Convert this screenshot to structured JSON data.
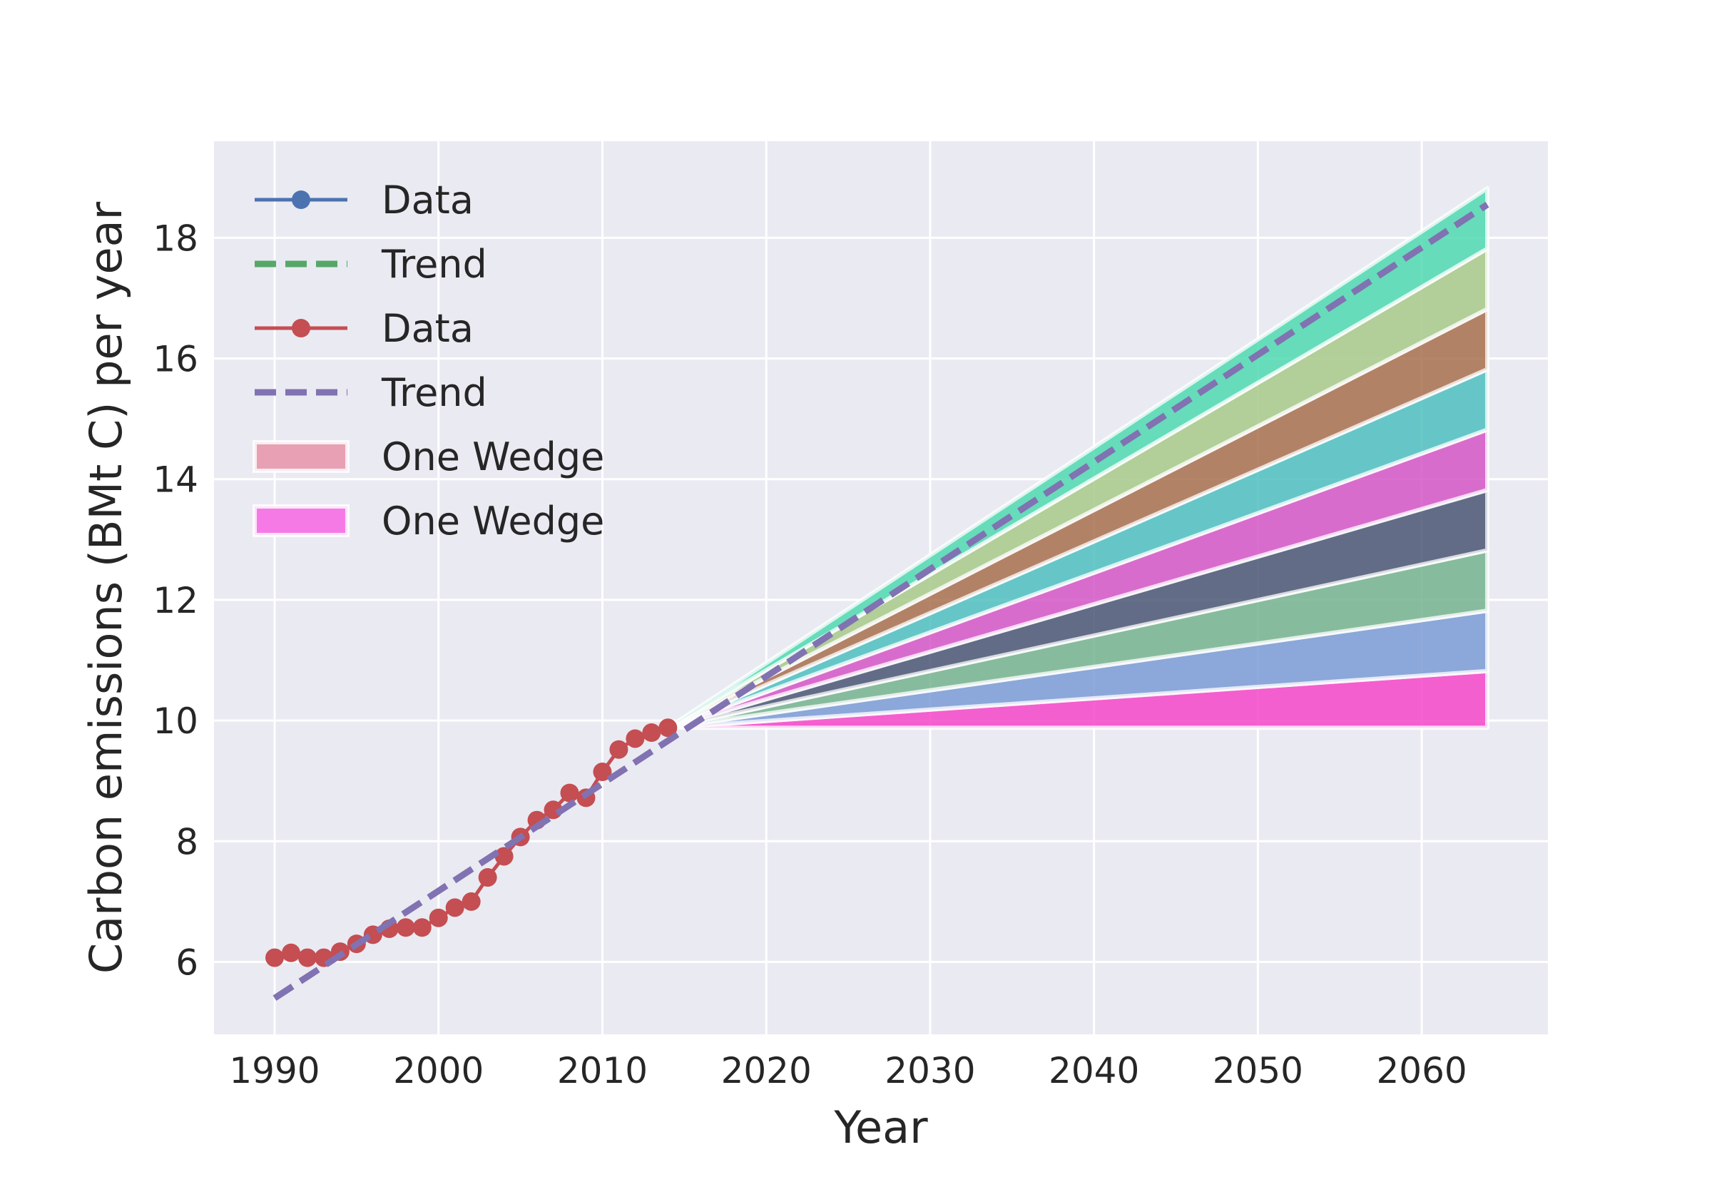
{
  "chart_data": {
    "type": "line",
    "xlabel": "Year",
    "ylabel": "Carbon emissions (BMt C) per year",
    "xlim": [
      1986.3,
      2067.7
    ],
    "ylim": [
      4.8,
      19.6
    ],
    "xticks": [
      1990,
      2000,
      2010,
      2020,
      2030,
      2040,
      2050,
      2060
    ],
    "yticks": [
      6,
      8,
      10,
      12,
      14,
      16,
      18
    ],
    "grid": true,
    "legend_position": "top-left",
    "legend": [
      {
        "label": "Data",
        "kind": "line-marker",
        "color": "#4c72b0"
      },
      {
        "label": "Trend",
        "kind": "dashed",
        "color": "#55a868"
      },
      {
        "label": "Data",
        "kind": "line-marker",
        "color": "#c44e52"
      },
      {
        "label": "Trend",
        "kind": "dashed",
        "color": "#8172b2"
      },
      {
        "label": "One Wedge",
        "kind": "patch",
        "color": "#e8a0b4"
      },
      {
        "label": "One Wedge",
        "kind": "patch",
        "color": "#f57ae6"
      }
    ],
    "data": {
      "color": "#c44e52",
      "x": [
        1990,
        1991,
        1992,
        1993,
        1994,
        1995,
        1996,
        1997,
        1998,
        1999,
        2000,
        2001,
        2002,
        2003,
        2004,
        2005,
        2006,
        2007,
        2008,
        2009,
        2010,
        2011,
        2012,
        2013,
        2014
      ],
      "y": [
        6.07,
        6.15,
        6.07,
        6.07,
        6.17,
        6.3,
        6.45,
        6.55,
        6.57,
        6.57,
        6.73,
        6.9,
        7.0,
        7.4,
        7.75,
        8.07,
        8.35,
        8.52,
        8.8,
        8.72,
        9.15,
        9.52,
        9.7,
        9.8,
        9.88
      ]
    },
    "trend": {
      "color": "#8172b2",
      "x": [
        1990,
        2064
      ],
      "y": [
        5.4,
        18.55
      ]
    },
    "wedges": {
      "start_year": 2014,
      "end_year": 2064,
      "base_value": 9.88,
      "end_values": [
        9.88,
        10.82,
        11.82,
        12.82,
        13.82,
        14.82,
        15.82,
        16.82,
        17.82,
        18.82
      ],
      "colors": [
        "#f547c8",
        "#7b9bd5",
        "#76b38f",
        "#4a5673",
        "#d556c5",
        "#4fbfbf",
        "#a8704f",
        "#a8c989",
        "#4fd9b0"
      ]
    }
  }
}
